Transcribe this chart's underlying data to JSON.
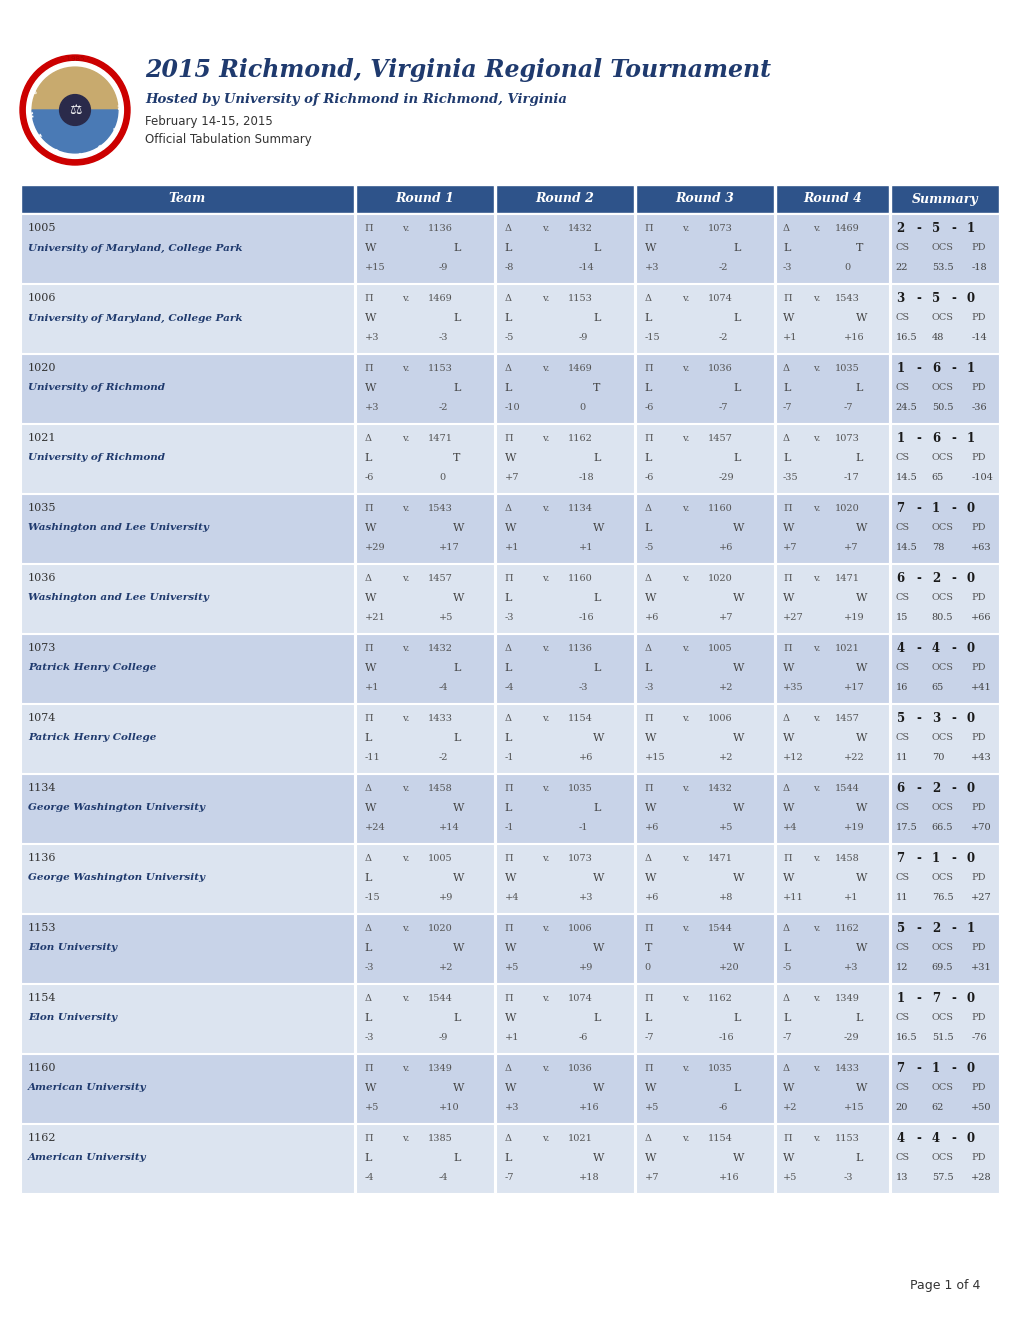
{
  "title": "2015 Richmond, Virginia Regional Tournament",
  "subtitle": "Hosted by University of Richmond in Richmond, Virginia",
  "date": "February 14-15, 2015",
  "summary_label": "Official Tabulation Summary",
  "page": "Page 1 of 4",
  "header_bg": "#2e538a",
  "row_bg_even": "#c8d3e8",
  "row_bg_odd": "#dce4f0",
  "col_header_bg": "#2e538a",
  "columns": [
    "Team",
    "Round 1",
    "Round 2",
    "Round 3",
    "Round 4",
    "Summary"
  ],
  "teams": [
    {
      "number": "1005",
      "school": "University of Maryland, College Park",
      "rounds": [
        {
          "side": "Π",
          "opp": "1136",
          "r1": "W",
          "r2": "L",
          "pd1": "+15",
          "pd2": "-9"
        },
        {
          "side": "Δ",
          "opp": "1432",
          "r1": "L",
          "r2": "L",
          "pd1": "-8",
          "pd2": "-14"
        },
        {
          "side": "Π",
          "opp": "1073",
          "r1": "W",
          "r2": "L",
          "pd1": "+3",
          "pd2": "-2"
        },
        {
          "side": "Δ",
          "opp": "1469",
          "r1": "L",
          "r2": "T",
          "pd1": "-3",
          "pd2": "0"
        }
      ],
      "w": "2",
      "l": "5",
      "t": "1",
      "cs": "22",
      "ocs": "53.5",
      "pd": "-18"
    },
    {
      "number": "1006",
      "school": "University of Maryland, College Park",
      "rounds": [
        {
          "side": "Π",
          "opp": "1469",
          "r1": "W",
          "r2": "L",
          "pd1": "+3",
          "pd2": "-3"
        },
        {
          "side": "Δ",
          "opp": "1153",
          "r1": "L",
          "r2": "L",
          "pd1": "-5",
          "pd2": "-9"
        },
        {
          "side": "Δ",
          "opp": "1074",
          "r1": "L",
          "r2": "L",
          "pd1": "-15",
          "pd2": "-2"
        },
        {
          "side": "Π",
          "opp": "1543",
          "r1": "W",
          "r2": "W",
          "pd1": "+1",
          "pd2": "+16"
        }
      ],
      "w": "3",
      "l": "5",
      "t": "0",
      "cs": "16.5",
      "ocs": "48",
      "pd": "-14"
    },
    {
      "number": "1020",
      "school": "University of Richmond",
      "rounds": [
        {
          "side": "Π",
          "opp": "1153",
          "r1": "W",
          "r2": "L",
          "pd1": "+3",
          "pd2": "-2"
        },
        {
          "side": "Δ",
          "opp": "1469",
          "r1": "L",
          "r2": "T",
          "pd1": "-10",
          "pd2": "0"
        },
        {
          "side": "Π",
          "opp": "1036",
          "r1": "L",
          "r2": "L",
          "pd1": "-6",
          "pd2": "-7"
        },
        {
          "side": "Δ",
          "opp": "1035",
          "r1": "L",
          "r2": "L",
          "pd1": "-7",
          "pd2": "-7"
        }
      ],
      "w": "1",
      "l": "6",
      "t": "1",
      "cs": "24.5",
      "ocs": "50.5",
      "pd": "-36"
    },
    {
      "number": "1021",
      "school": "University of Richmond",
      "rounds": [
        {
          "side": "Δ",
          "opp": "1471",
          "r1": "L",
          "r2": "T",
          "pd1": "-6",
          "pd2": "0"
        },
        {
          "side": "Π",
          "opp": "1162",
          "r1": "W",
          "r2": "L",
          "pd1": "+7",
          "pd2": "-18"
        },
        {
          "side": "Π",
          "opp": "1457",
          "r1": "L",
          "r2": "L",
          "pd1": "-6",
          "pd2": "-29"
        },
        {
          "side": "Δ",
          "opp": "1073",
          "r1": "L",
          "r2": "L",
          "pd1": "-35",
          "pd2": "-17"
        }
      ],
      "w": "1",
      "l": "6",
      "t": "1",
      "cs": "14.5",
      "ocs": "65",
      "pd": "-104"
    },
    {
      "number": "1035",
      "school": "Washington and Lee University",
      "rounds": [
        {
          "side": "Π",
          "opp": "1543",
          "r1": "W",
          "r2": "W",
          "pd1": "+29",
          "pd2": "+17"
        },
        {
          "side": "Δ",
          "opp": "1134",
          "r1": "W",
          "r2": "W",
          "pd1": "+1",
          "pd2": "+1"
        },
        {
          "side": "Δ",
          "opp": "1160",
          "r1": "L",
          "r2": "W",
          "pd1": "-5",
          "pd2": "+6"
        },
        {
          "side": "Π",
          "opp": "1020",
          "r1": "W",
          "r2": "W",
          "pd1": "+7",
          "pd2": "+7"
        }
      ],
      "w": "7",
      "l": "1",
      "t": "0",
      "cs": "14.5",
      "ocs": "78",
      "pd": "+63"
    },
    {
      "number": "1036",
      "school": "Washington and Lee University",
      "rounds": [
        {
          "side": "Δ",
          "opp": "1457",
          "r1": "W",
          "r2": "W",
          "pd1": "+21",
          "pd2": "+5"
        },
        {
          "side": "Π",
          "opp": "1160",
          "r1": "L",
          "r2": "L",
          "pd1": "-3",
          "pd2": "-16"
        },
        {
          "side": "Δ",
          "opp": "1020",
          "r1": "W",
          "r2": "W",
          "pd1": "+6",
          "pd2": "+7"
        },
        {
          "side": "Π",
          "opp": "1471",
          "r1": "W",
          "r2": "W",
          "pd1": "+27",
          "pd2": "+19"
        }
      ],
      "w": "6",
      "l": "2",
      "t": "0",
      "cs": "15",
      "ocs": "80.5",
      "pd": "+66"
    },
    {
      "number": "1073",
      "school": "Patrick Henry College",
      "rounds": [
        {
          "side": "Π",
          "opp": "1432",
          "r1": "W",
          "r2": "L",
          "pd1": "+1",
          "pd2": "-4"
        },
        {
          "side": "Δ",
          "opp": "1136",
          "r1": "L",
          "r2": "L",
          "pd1": "-4",
          "pd2": "-3"
        },
        {
          "side": "Δ",
          "opp": "1005",
          "r1": "L",
          "r2": "W",
          "pd1": "-3",
          "pd2": "+2"
        },
        {
          "side": "Π",
          "opp": "1021",
          "r1": "W",
          "r2": "W",
          "pd1": "+35",
          "pd2": "+17"
        }
      ],
      "w": "4",
      "l": "4",
      "t": "0",
      "cs": "16",
      "ocs": "65",
      "pd": "+41"
    },
    {
      "number": "1074",
      "school": "Patrick Henry College",
      "rounds": [
        {
          "side": "Π",
          "opp": "1433",
          "r1": "L",
          "r2": "L",
          "pd1": "-11",
          "pd2": "-2"
        },
        {
          "side": "Δ",
          "opp": "1154",
          "r1": "L",
          "r2": "W",
          "pd1": "-1",
          "pd2": "+6"
        },
        {
          "side": "Π",
          "opp": "1006",
          "r1": "W",
          "r2": "W",
          "pd1": "+15",
          "pd2": "+2"
        },
        {
          "side": "Δ",
          "opp": "1457",
          "r1": "W",
          "r2": "W",
          "pd1": "+12",
          "pd2": "+22"
        }
      ],
      "w": "5",
      "l": "3",
      "t": "0",
      "cs": "11",
      "ocs": "70",
      "pd": "+43"
    },
    {
      "number": "1134",
      "school": "George Washington University",
      "rounds": [
        {
          "side": "Δ",
          "opp": "1458",
          "r1": "W",
          "r2": "W",
          "pd1": "+24",
          "pd2": "+14"
        },
        {
          "side": "Π",
          "opp": "1035",
          "r1": "L",
          "r2": "L",
          "pd1": "-1",
          "pd2": "-1"
        },
        {
          "side": "Π",
          "opp": "1432",
          "r1": "W",
          "r2": "W",
          "pd1": "+6",
          "pd2": "+5"
        },
        {
          "side": "Δ",
          "opp": "1544",
          "r1": "W",
          "r2": "W",
          "pd1": "+4",
          "pd2": "+19"
        }
      ],
      "w": "6",
      "l": "2",
      "t": "0",
      "cs": "17.5",
      "ocs": "66.5",
      "pd": "+70"
    },
    {
      "number": "1136",
      "school": "George Washington University",
      "rounds": [
        {
          "side": "Δ",
          "opp": "1005",
          "r1": "L",
          "r2": "W",
          "pd1": "-15",
          "pd2": "+9"
        },
        {
          "side": "Π",
          "opp": "1073",
          "r1": "W",
          "r2": "W",
          "pd1": "+4",
          "pd2": "+3"
        },
        {
          "side": "Δ",
          "opp": "1471",
          "r1": "W",
          "r2": "W",
          "pd1": "+6",
          "pd2": "+8"
        },
        {
          "side": "Π",
          "opp": "1458",
          "r1": "W",
          "r2": "W",
          "pd1": "+11",
          "pd2": "+1"
        }
      ],
      "w": "7",
      "l": "1",
      "t": "0",
      "cs": "11",
      "ocs": "76.5",
      "pd": "+27"
    },
    {
      "number": "1153",
      "school": "Elon University",
      "rounds": [
        {
          "side": "Δ",
          "opp": "1020",
          "r1": "L",
          "r2": "W",
          "pd1": "-3",
          "pd2": "+2"
        },
        {
          "side": "Π",
          "opp": "1006",
          "r1": "W",
          "r2": "W",
          "pd1": "+5",
          "pd2": "+9"
        },
        {
          "side": "Π",
          "opp": "1544",
          "r1": "T",
          "r2": "W",
          "pd1": "0",
          "pd2": "+20"
        },
        {
          "side": "Δ",
          "opp": "1162",
          "r1": "L",
          "r2": "W",
          "pd1": "-5",
          "pd2": "+3"
        }
      ],
      "w": "5",
      "l": "2",
      "t": "1",
      "cs": "12",
      "ocs": "69.5",
      "pd": "+31"
    },
    {
      "number": "1154",
      "school": "Elon University",
      "rounds": [
        {
          "side": "Δ",
          "opp": "1544",
          "r1": "L",
          "r2": "L",
          "pd1": "-3",
          "pd2": "-9"
        },
        {
          "side": "Π",
          "opp": "1074",
          "r1": "W",
          "r2": "L",
          "pd1": "+1",
          "pd2": "-6"
        },
        {
          "side": "Π",
          "opp": "1162",
          "r1": "L",
          "r2": "L",
          "pd1": "-7",
          "pd2": "-16"
        },
        {
          "side": "Δ",
          "opp": "1349",
          "r1": "L",
          "r2": "L",
          "pd1": "-7",
          "pd2": "-29"
        }
      ],
      "w": "1",
      "l": "7",
      "t": "0",
      "cs": "16.5",
      "ocs": "51.5",
      "pd": "-76"
    },
    {
      "number": "1160",
      "school": "American University",
      "rounds": [
        {
          "side": "Π",
          "opp": "1349",
          "r1": "W",
          "r2": "W",
          "pd1": "+5",
          "pd2": "+10"
        },
        {
          "side": "Δ",
          "opp": "1036",
          "r1": "W",
          "r2": "W",
          "pd1": "+3",
          "pd2": "+16"
        },
        {
          "side": "Π",
          "opp": "1035",
          "r1": "W",
          "r2": "L",
          "pd1": "+5",
          "pd2": "-6"
        },
        {
          "side": "Δ",
          "opp": "1433",
          "r1": "W",
          "r2": "W",
          "pd1": "+2",
          "pd2": "+15"
        }
      ],
      "w": "7",
      "l": "1",
      "t": "0",
      "cs": "20",
      "ocs": "62",
      "pd": "+50"
    },
    {
      "number": "1162",
      "school": "American University",
      "rounds": [
        {
          "side": "Π",
          "opp": "1385",
          "r1": "L",
          "r2": "L",
          "pd1": "-4",
          "pd2": "-4"
        },
        {
          "side": "Δ",
          "opp": "1021",
          "r1": "L",
          "r2": "W",
          "pd1": "-7",
          "pd2": "+18"
        },
        {
          "side": "Δ",
          "opp": "1154",
          "r1": "W",
          "r2": "W",
          "pd1": "+7",
          "pd2": "+16"
        },
        {
          "side": "Π",
          "opp": "1153",
          "r1": "W",
          "r2": "L",
          "pd1": "+5",
          "pd2": "-3"
        }
      ],
      "w": "4",
      "l": "4",
      "t": "0",
      "cs": "13",
      "ocs": "57.5",
      "pd": "+28"
    }
  ]
}
